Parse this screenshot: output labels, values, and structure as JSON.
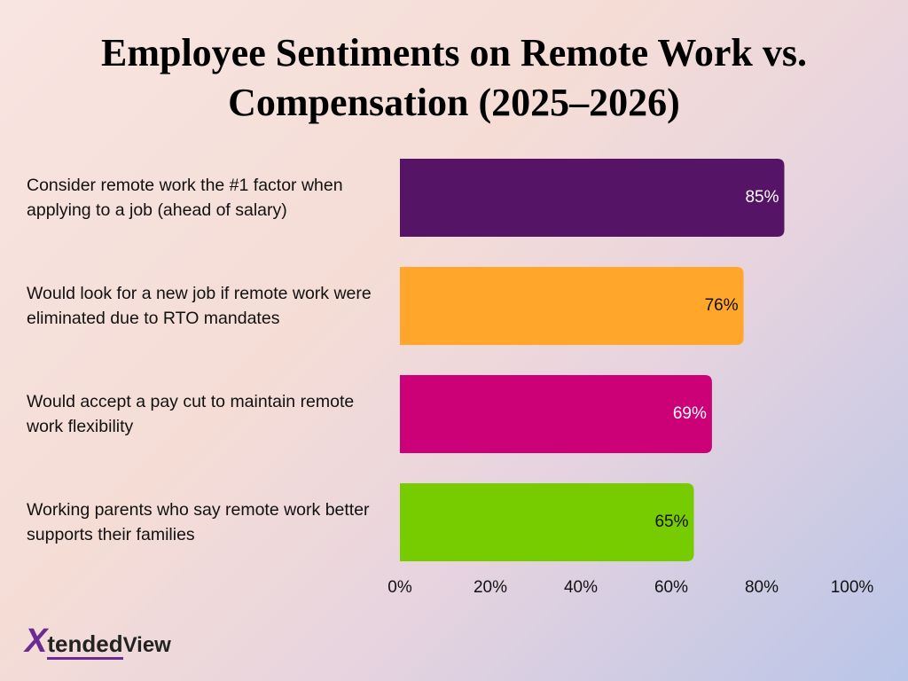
{
  "chart_data": {
    "type": "barh",
    "title": "Employee Sentiments on Remote Work vs. Compensation (2025–2026)",
    "categories": [
      "Consider remote work the #1 factor when applying to a job (ahead of salary)",
      "Would look for a new job if remote work were eliminated due to RTO mandates",
      "Would accept a pay cut to maintain remote work flexibility",
      "Working parents who say remote work better supports their families"
    ],
    "values": [
      85,
      76,
      69,
      65
    ],
    "value_labels": [
      "85%",
      "76%",
      "69%",
      "65%"
    ],
    "colors": [
      "#561467",
      "#ffa62b",
      "#cc0077",
      "#77cc00"
    ],
    "xlim": [
      0,
      100
    ],
    "xticks": [
      {
        "value": 0,
        "label": "0%"
      },
      {
        "value": 20,
        "label": "20%"
      },
      {
        "value": 40,
        "label": "40%"
      },
      {
        "value": 60,
        "label": "60%"
      },
      {
        "value": 80,
        "label": "80%"
      },
      {
        "value": 100,
        "label": "100%"
      }
    ],
    "grid": false
  },
  "brand": {
    "mark": "X",
    "name": "tended",
    "suffix": "View"
  }
}
